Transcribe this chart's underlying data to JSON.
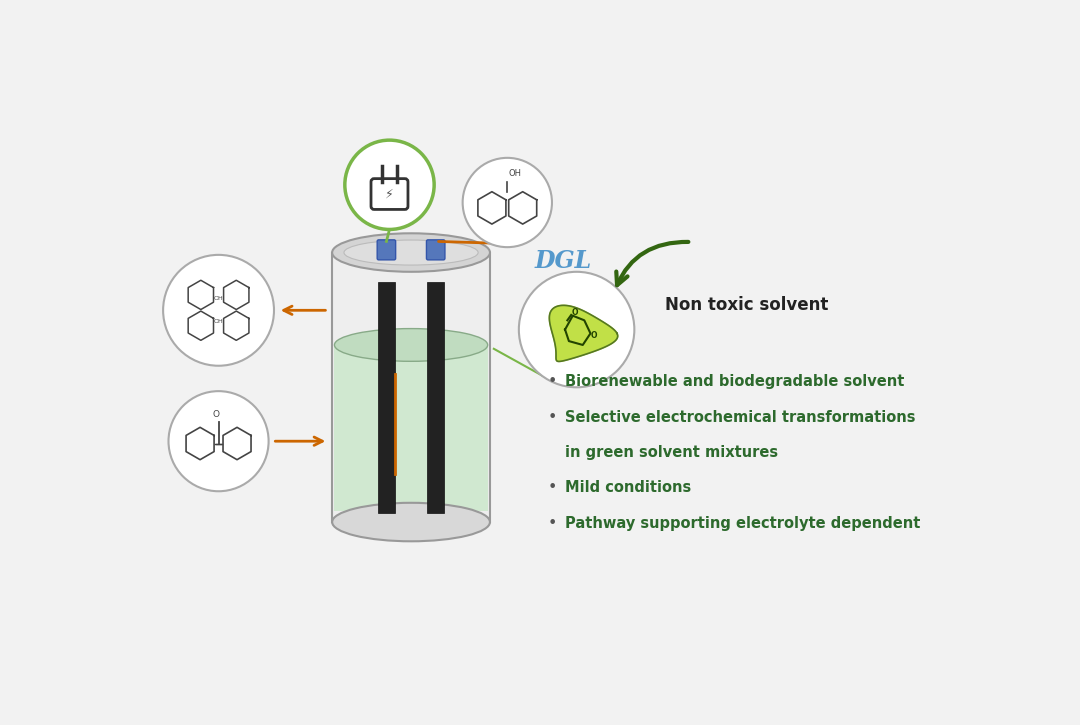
{
  "bg_color": "#f2f2f2",
  "bullet_text_color": "#2d6a2d",
  "non_toxic_color": "#333333",
  "bullet_points": [
    "Biorenewable and biodegradable solvent",
    "Selective electrochemical transformations",
    "in green solvent mixtures",
    "Mild conditions",
    "Pathway supporting electrolyte dependent"
  ],
  "non_toxic_label": "Non toxic solvent",
  "cylinder_body_color": "#cccccc",
  "cylinder_liquid_color": "#d0e8d0",
  "electrode_color": "#222222",
  "orange_arrow_color": "#cc6600",
  "green_circle_border": "#7ab648",
  "gray_circle_border": "#aaaaaa",
  "plug_green_border": "#7ab648",
  "connector_blue": "#5577bb",
  "dgl_label_color": "#5599cc",
  "green_arrow_color": "#336622",
  "bullet_dot_color": "#555555"
}
